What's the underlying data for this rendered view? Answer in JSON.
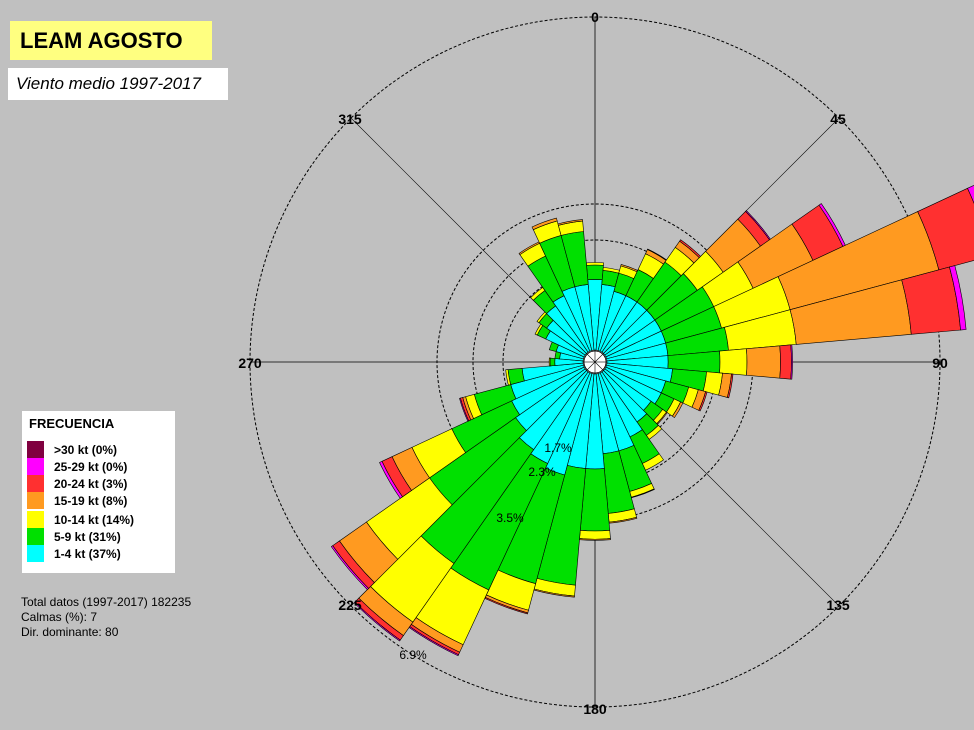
{
  "header": {
    "title": "LEAM AGOSTO",
    "subtitle": "Viento medio 1997-2017"
  },
  "legend": {
    "title": "FRECUENCIA",
    "items": [
      {
        "label": ">30 kt (0%)",
        "color": "#800040"
      },
      {
        "label": "25-29 kt (0%)",
        "color": "#ff00ff"
      },
      {
        "label": "20-24 kt (3%)",
        "color": "#ff3030"
      },
      {
        "label": "15-19 kt (8%)",
        "color": "#ff9a20"
      },
      {
        "label": "10-14 kt (14%)",
        "color": "#ffff00"
      },
      {
        "label": "5-9 kt (31%)",
        "color": "#00e000"
      },
      {
        "label": "1-4 kt (37%)",
        "color": "#00ffff"
      }
    ]
  },
  "stats": {
    "total": "Total datos (1997-2017) 182235",
    "calms": "Calmas (%): 7",
    "dominant": "Dir. dominante:  80"
  },
  "chart_data": {
    "type": "wind-rose",
    "direction_labels": [
      "0",
      "45",
      "90",
      "135",
      "180",
      "225",
      "270",
      "315"
    ],
    "ring_labels": [
      "1.7%",
      "2.3%",
      "3.5%",
      "6.9%"
    ],
    "ring_values": [
      1.7,
      2.3,
      3.5,
      6.9
    ],
    "sector_width_deg": 10,
    "speed_classes": [
      "1-4 kt",
      "5-9 kt",
      "10-14 kt",
      "15-19 kt",
      "20-24 kt",
      "25-29 kt",
      ">30 kt"
    ],
    "sectors": [
      {
        "dir": 0,
        "values": [
          1.5,
          0.3,
          0.05,
          0,
          0,
          0,
          0
        ]
      },
      {
        "dir": 10,
        "values": [
          1.4,
          0.3,
          0.06,
          0,
          0,
          0,
          0
        ]
      },
      {
        "dir": 20,
        "values": [
          1.3,
          0.4,
          0.15,
          0.03,
          0,
          0,
          0
        ]
      },
      {
        "dir": 30,
        "values": [
          1.3,
          0.6,
          0.35,
          0.12,
          0.02,
          0,
          0
        ]
      },
      {
        "dir": 40,
        "values": [
          1.3,
          1.0,
          0.6,
          0.25,
          0.06,
          0,
          0
        ]
      },
      {
        "dir": 50,
        "values": [
          1.3,
          1.1,
          1.05,
          0.85,
          0.2,
          0.02,
          0
        ]
      },
      {
        "dir": 60,
        "values": [
          1.3,
          1.3,
          1.2,
          1.2,
          0.6,
          0.05,
          0
        ]
      },
      {
        "dir": 70,
        "values": [
          1.3,
          1.3,
          1.7,
          2.8,
          1.0,
          0.15,
          0
        ]
      },
      {
        "dir": 80,
        "values": [
          1.3,
          1.4,
          1.6,
          2.1,
          0.9,
          0.1,
          0
        ]
      },
      {
        "dir": 90,
        "values": [
          1.3,
          1.1,
          0.9,
          0.7,
          0.2,
          0.02,
          0
        ]
      },
      {
        "dir": 100,
        "values": [
          1.4,
          0.7,
          0.4,
          0.3,
          0.05,
          0,
          0
        ]
      },
      {
        "dir": 110,
        "values": [
          1.3,
          0.5,
          0.2,
          0.15,
          0.03,
          0,
          0
        ]
      },
      {
        "dir": 120,
        "values": [
          1.3,
          0.3,
          0.15,
          0.05,
          0,
          0,
          0
        ]
      },
      {
        "dir": 130,
        "values": [
          1.2,
          0.3,
          0.1,
          0.02,
          0,
          0,
          0
        ]
      },
      {
        "dir": 140,
        "values": [
          1.3,
          0.35,
          0.1,
          0,
          0,
          0,
          0
        ]
      },
      {
        "dir": 150,
        "values": [
          1.5,
          0.6,
          0.15,
          0,
          0,
          0,
          0
        ]
      },
      {
        "dir": 160,
        "values": [
          1.7,
          1.0,
          0.2,
          0.02,
          0,
          0,
          0
        ]
      },
      {
        "dir": 170,
        "values": [
          1.7,
          1.6,
          0.25,
          0.02,
          0,
          0,
          0
        ]
      },
      {
        "dir": 180,
        "values": [
          2.0,
          1.7,
          0.15,
          0.02,
          0,
          0,
          0
        ]
      },
      {
        "dir": 190,
        "values": [
          2.0,
          2.7,
          0.2,
          0.02,
          0,
          0,
          0
        ]
      },
      {
        "dir": 200,
        "values": [
          2.2,
          2.6,
          0.5,
          0.05,
          0.02,
          0,
          0
        ]
      },
      {
        "dir": 210,
        "values": [
          2.1,
          3.1,
          1.1,
          0.15,
          0.05,
          0.02,
          0
        ]
      },
      {
        "dir": 220,
        "values": [
          2.0,
          3.1,
          1.3,
          0.3,
          0.1,
          0.02,
          0
        ]
      },
      {
        "dir": 230,
        "values": [
          1.8,
          2.5,
          1.4,
          0.6,
          0.15,
          0.03,
          0
        ]
      },
      {
        "dir": 240,
        "values": [
          1.7,
          1.8,
          0.8,
          0.4,
          0.2,
          0.05,
          0
        ]
      },
      {
        "dir": 250,
        "values": [
          1.6,
          0.8,
          0.3,
          0.1,
          0.08,
          0.03,
          0
        ]
      },
      {
        "dir": 260,
        "values": [
          1.3,
          0.3,
          0.05,
          0,
          0,
          0,
          0
        ]
      },
      {
        "dir": 270,
        "values": [
          0.6,
          0.1,
          0.02,
          0,
          0,
          0,
          0
        ]
      },
      {
        "dir": 280,
        "values": [
          0.5,
          0.1,
          0,
          0,
          0,
          0,
          0
        ]
      },
      {
        "dir": 290,
        "values": [
          0.6,
          0.15,
          0,
          0,
          0,
          0,
          0
        ]
      },
      {
        "dir": 300,
        "values": [
          0.9,
          0.2,
          0.05,
          0,
          0,
          0,
          0
        ]
      },
      {
        "dir": 310,
        "values": [
          1.0,
          0.2,
          0.05,
          0,
          0,
          0,
          0
        ]
      },
      {
        "dir": 320,
        "values": [
          1.2,
          0.4,
          0.08,
          0,
          0,
          0,
          0
        ]
      },
      {
        "dir": 330,
        "values": [
          1.3,
          0.9,
          0.4,
          0.05,
          0,
          0,
          0
        ]
      },
      {
        "dir": 340,
        "values": [
          1.4,
          1.2,
          0.5,
          0.1,
          0,
          0,
          0
        ]
      },
      {
        "dir": 350,
        "values": [
          1.4,
          1.2,
          0.35,
          0.05,
          0,
          0,
          0
        ]
      }
    ]
  }
}
